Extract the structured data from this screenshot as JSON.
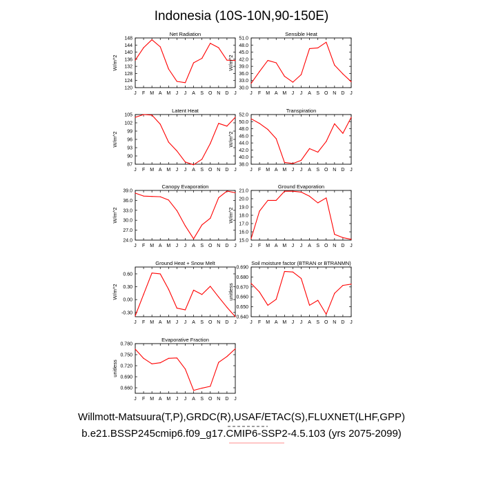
{
  "title": "Indonesia (10S-10N,90-150E)",
  "footer": {
    "line1": "Willmott-Matsuura(T,P),GRDC(R),USAF/ETAC(S),FLUXNET(LHF,GPP)",
    "line2": "b.e21.BSSP245cmip6.f09_g17.CMIP6-SSP2-4.5.103 (yrs 2075-2099)"
  },
  "colors": {
    "series": "#ff0000",
    "axis": "#000000",
    "underline": "#ff6666"
  },
  "chart_data": [
    {
      "type": "line",
      "title": "Net Radiation",
      "ylabel": "W/m^2",
      "x": [
        "J",
        "F",
        "M",
        "A",
        "M",
        "J",
        "J",
        "A",
        "S",
        "O",
        "N",
        "D",
        "J"
      ],
      "values": [
        135.5,
        142.5,
        147,
        143,
        130.5,
        123.5,
        122.8,
        134,
        136.5,
        145,
        142.5,
        135.5,
        135.3
      ],
      "ylim": [
        120,
        148
      ],
      "yticks": [
        "148",
        "144",
        "140",
        "136",
        "132",
        "128",
        "124",
        "120"
      ]
    },
    {
      "type": "line",
      "title": "Sensible Heat",
      "ylabel": "W/m^2",
      "x": [
        "J",
        "F",
        "M",
        "A",
        "M",
        "J",
        "J",
        "A",
        "S",
        "O",
        "N",
        "D",
        "J"
      ],
      "values": [
        31.8,
        36.8,
        41.5,
        40.5,
        34.8,
        32.3,
        35.5,
        46.5,
        46.8,
        49.2,
        39.5,
        35.8,
        32.5
      ],
      "ylim": [
        30,
        51
      ],
      "yticks": [
        "51.0",
        "48.0",
        "45.0",
        "42.0",
        "39.0",
        "36.0",
        "33.0",
        "30.0"
      ]
    },
    {
      "type": "line",
      "title": "Latent Heat",
      "ylabel": "W/m^2",
      "x": [
        "J",
        "F",
        "M",
        "A",
        "M",
        "J",
        "J",
        "A",
        "S",
        "O",
        "N",
        "D",
        "J"
      ],
      "values": [
        104,
        105,
        104.8,
        101.5,
        95,
        91.8,
        87.8,
        86.8,
        88.8,
        94.5,
        101.8,
        100.8,
        104
      ],
      "ylim": [
        87,
        105
      ],
      "yticks": [
        "105",
        "102",
        "99",
        "96",
        "93",
        "90",
        "87"
      ]
    },
    {
      "type": "line",
      "title": "Transpiration",
      "ylabel": "W/m^2",
      "x": [
        "J",
        "F",
        "M",
        "A",
        "M",
        "J",
        "J",
        "A",
        "S",
        "O",
        "N",
        "D",
        "J"
      ],
      "values": [
        50.8,
        49.5,
        47.8,
        45.2,
        38.5,
        38.2,
        39.1,
        42.4,
        41.4,
        44.4,
        49.4,
        46.7,
        51.2
      ],
      "ylim": [
        38,
        52
      ],
      "yticks": [
        "52.0",
        "50.0",
        "48.0",
        "46.0",
        "44.0",
        "42.0",
        "40.0",
        "38.0"
      ]
    },
    {
      "type": "line",
      "title": "Canopy Evaporation",
      "ylabel": "W/m^2",
      "x": [
        "J",
        "F",
        "M",
        "A",
        "M",
        "J",
        "J",
        "A",
        "S",
        "O",
        "N",
        "D",
        "J"
      ],
      "values": [
        38.2,
        37.3,
        37.2,
        37.1,
        36.1,
        32.9,
        28.3,
        24.4,
        28.6,
        30.6,
        36.8,
        38.8,
        38.3
      ],
      "ylim": [
        24,
        39
      ],
      "yticks": [
        "39.0",
        "36.0",
        "33.0",
        "30.0",
        "27.0",
        "24.0"
      ]
    },
    {
      "type": "line",
      "title": "Ground Evaporation",
      "ylabel": "W/m^2",
      "x": [
        "J",
        "F",
        "M",
        "A",
        "M",
        "J",
        "J",
        "A",
        "S",
        "O",
        "N",
        "D",
        "J"
      ],
      "values": [
        15.2,
        18.5,
        19.8,
        19.8,
        20.9,
        20.9,
        20.8,
        20.3,
        19.5,
        20.1,
        15.7,
        15.3,
        15.1
      ],
      "ylim": [
        15,
        21
      ],
      "yticks": [
        "21.0",
        "20.0",
        "19.0",
        "18.0",
        "17.0",
        "16.0",
        "15.0"
      ]
    },
    {
      "type": "line",
      "title": "Ground Heat + Snow Melt",
      "ylabel": "W/m^2",
      "x": [
        "J",
        "F",
        "M",
        "A",
        "M",
        "J",
        "J",
        "A",
        "S",
        "O",
        "N",
        "D",
        "J"
      ],
      "values": [
        -0.38,
        0.12,
        0.62,
        0.6,
        0.24,
        -0.2,
        -0.24,
        0.22,
        0.12,
        0.31,
        0.06,
        -0.18,
        -0.4
      ],
      "ylim": [
        -0.4,
        0.76
      ],
      "yticks": [
        "0.60",
        "0.30",
        "0.00",
        "-0.30"
      ],
      "ytick_values": [
        0.6,
        0.3,
        0.0,
        -0.3
      ]
    },
    {
      "type": "line",
      "title": "Soil moisture factor (BTRAN or BTRANMN)",
      "ylabel": "unitless",
      "x": [
        "J",
        "F",
        "M",
        "A",
        "M",
        "J",
        "J",
        "A",
        "S",
        "O",
        "N",
        "D",
        "J"
      ],
      "values": [
        0.6735,
        0.6648,
        0.6515,
        0.6575,
        0.6855,
        0.685,
        0.6785,
        0.6515,
        0.6565,
        0.6425,
        0.6635,
        0.6715,
        0.6728
      ],
      "ylim": [
        0.64,
        0.69
      ],
      "yticks": [
        "0.690",
        "0.680",
        "0.670",
        "0.660",
        "0.650",
        "0.640"
      ]
    },
    {
      "type": "line",
      "title": "Evaporative Fraction",
      "ylabel": "unitless",
      "x": [
        "J",
        "F",
        "M",
        "A",
        "M",
        "J",
        "J",
        "A",
        "S",
        "O",
        "N",
        "D",
        "J"
      ],
      "values": [
        0.765,
        0.74,
        0.725,
        0.728,
        0.74,
        0.741,
        0.711,
        0.653,
        0.659,
        0.664,
        0.729,
        0.745,
        0.766
      ],
      "ylim": [
        0.645,
        0.78
      ],
      "yticks": [
        "0.780",
        "0.750",
        "0.720",
        "0.690",
        "0.660"
      ],
      "ytick_values": [
        0.78,
        0.75,
        0.72,
        0.69,
        0.66
      ]
    }
  ]
}
